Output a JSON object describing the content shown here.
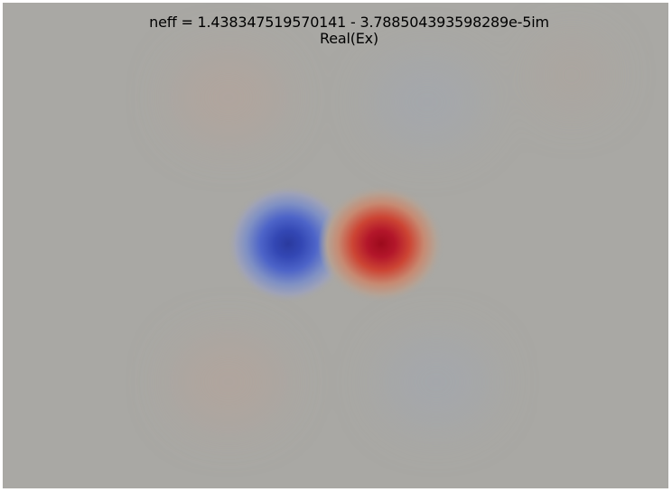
{
  "plot": {
    "title": "neff = 1.438347519570141 - 3.788504393598289e-5im",
    "subtitle": "Real(Ex)",
    "background_color": "#a9a8a4",
    "colormap": {
      "negative": "#3b4cc0",
      "neutral": "#a9a8a4",
      "positive": "#b40426"
    }
  }
}
